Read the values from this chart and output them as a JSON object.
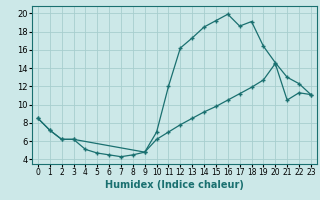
{
  "xlabel": "Humidex (Indice chaleur)",
  "background_color": "#cce8e8",
  "line_color": "#1a7070",
  "marker": "+",
  "xlim": [
    -0.5,
    23.5
  ],
  "ylim": [
    3.5,
    20.8
  ],
  "xticks": [
    0,
    1,
    2,
    3,
    4,
    5,
    6,
    7,
    8,
    9,
    10,
    11,
    12,
    13,
    14,
    15,
    16,
    17,
    18,
    19,
    20,
    21,
    22,
    23
  ],
  "yticks": [
    4,
    6,
    8,
    10,
    12,
    14,
    16,
    18,
    20
  ],
  "curve1_x": [
    0,
    1,
    2,
    3,
    4,
    5,
    6,
    7,
    8,
    9,
    10,
    11,
    12,
    13,
    14,
    15,
    16,
    17,
    18,
    19,
    20,
    21,
    22,
    23
  ],
  "curve1_y": [
    8.5,
    7.2,
    6.2,
    6.2,
    5.1,
    4.7,
    4.5,
    4.3,
    4.5,
    4.8,
    7.0,
    12.0,
    16.2,
    17.3,
    18.5,
    19.2,
    19.9,
    18.6,
    19.1,
    16.4,
    14.6,
    13.0,
    12.3,
    11.1
  ],
  "curve2_x": [
    0,
    1,
    2,
    3,
    9,
    10,
    11,
    12,
    13,
    14,
    15,
    16,
    17,
    18,
    19,
    20,
    21,
    22,
    23
  ],
  "curve2_y": [
    8.5,
    7.2,
    6.2,
    6.2,
    4.8,
    6.2,
    7.0,
    7.8,
    8.5,
    9.2,
    9.8,
    10.5,
    11.2,
    11.9,
    12.7,
    14.5,
    10.5,
    11.3,
    11.1
  ],
  "grid_color": "#a8cece",
  "font_size_label": 7,
  "font_size_tick": 5.5
}
